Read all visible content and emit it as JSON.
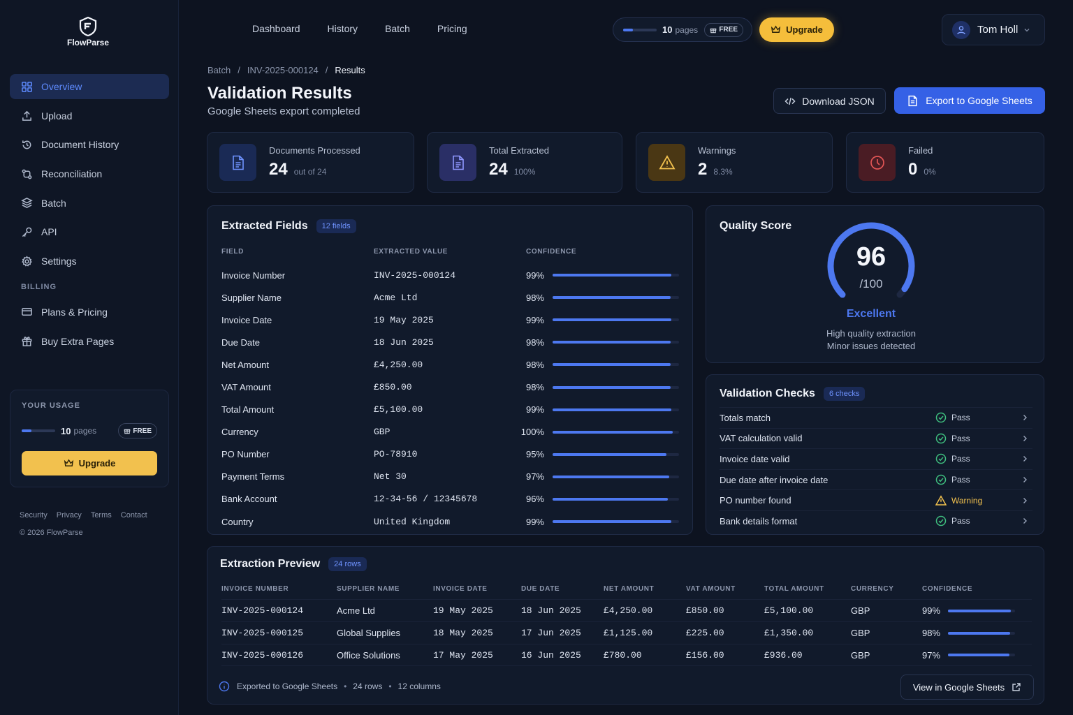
{
  "brand": {
    "name": "FlowParse"
  },
  "sidebar": {
    "items": [
      {
        "label": "Overview",
        "icon": "grid-icon"
      },
      {
        "label": "Upload",
        "icon": "upload-icon"
      },
      {
        "label": "Document History",
        "icon": "history-icon"
      },
      {
        "label": "Reconciliation",
        "icon": "reconcile-icon"
      },
      {
        "label": "Batch",
        "icon": "layers-icon"
      },
      {
        "label": "API",
        "icon": "key-icon"
      },
      {
        "label": "Settings",
        "icon": "gear-icon"
      }
    ],
    "billing_label": "BILLING",
    "billing_items": [
      {
        "label": "Plans & Pricing",
        "icon": "card-icon"
      },
      {
        "label": "Buy Extra Pages",
        "icon": "gift-icon"
      }
    ],
    "usage": {
      "title": "YOUR USAGE",
      "pages": "10",
      "unit": "pages",
      "plan": "FREE",
      "progress": 0.3,
      "upgrade": "Upgrade"
    },
    "footer_links": [
      "Security",
      "Privacy",
      "Terms",
      "Contact"
    ],
    "copyright": "© 2026 FlowParse"
  },
  "topnav": {
    "links": [
      "Dashboard",
      "History",
      "Batch",
      "Pricing"
    ],
    "usage": {
      "pages": "10",
      "unit": "pages",
      "plan": "FREE",
      "progress": 0.3
    },
    "upgrade": "Upgrade",
    "user": "Tom Holl"
  },
  "header": {
    "breadcrumb": [
      "Batch",
      "INV-2025-000124",
      "Results"
    ],
    "breadcrumb_sep": "/",
    "title": "Validation Results",
    "subtitle": "Google Sheets export completed",
    "download_json": "Download JSON",
    "export_sheets": "Export to Google Sheets"
  },
  "stats": [
    {
      "label": "Documents Processed",
      "value": "24",
      "sub": "out of 24",
      "color": "#4d78f0"
    },
    {
      "label": "Total Extracted",
      "value": "24",
      "sub": "100%",
      "color": "#7b86ff"
    },
    {
      "label": "Warnings",
      "value": "2",
      "sub": "8.3%",
      "color": "#f2c14e"
    },
    {
      "label": "Failed",
      "value": "0",
      "sub": "0%",
      "color": "#e25555"
    }
  ],
  "extracted_fields": {
    "title": "Extracted Fields",
    "badge": "12 fields",
    "columns": [
      "FIELD",
      "EXTRACTED VALUE",
      "CONFIDENCE"
    ],
    "rows": [
      {
        "field": "Invoice Number",
        "value": "INV-2025-000124",
        "confidence": "99%",
        "pct": 99
      },
      {
        "field": "Supplier Name",
        "value": "Acme Ltd",
        "confidence": "98%",
        "pct": 98
      },
      {
        "field": "Invoice Date",
        "value": "19 May 2025",
        "confidence": "99%",
        "pct": 99
      },
      {
        "field": "Due Date",
        "value": "18 Jun 2025",
        "confidence": "98%",
        "pct": 98
      },
      {
        "field": "Net Amount",
        "value": "£4,250.00",
        "confidence": "98%",
        "pct": 98
      },
      {
        "field": "VAT Amount",
        "value": "£850.00",
        "confidence": "98%",
        "pct": 98
      },
      {
        "field": "Total Amount",
        "value": "£5,100.00",
        "confidence": "99%",
        "pct": 99
      },
      {
        "field": "Currency",
        "value": "GBP",
        "confidence": "100%",
        "pct": 100
      },
      {
        "field": "PO Number",
        "value": "PO-78910",
        "confidence": "95%",
        "pct": 95
      },
      {
        "field": "Payment Terms",
        "value": "Net 30",
        "confidence": "97%",
        "pct": 97
      },
      {
        "field": "Bank Account",
        "value": "12-34-56 / 12345678",
        "confidence": "96%",
        "pct": 96
      },
      {
        "field": "Country",
        "value": "United Kingdom",
        "confidence": "99%",
        "pct": 99
      }
    ]
  },
  "quality": {
    "title": "Quality Score",
    "score": "96",
    "of": "/100",
    "score_fraction": 0.96,
    "rating": "Excellent",
    "note1": "High quality extraction",
    "note2": "Minor issues detected"
  },
  "checks": {
    "title": "Validation Checks",
    "badge": "6 checks",
    "rows": [
      {
        "label": "Totals match",
        "status": "Pass",
        "type": "pass"
      },
      {
        "label": "VAT calculation valid",
        "status": "Pass",
        "type": "pass"
      },
      {
        "label": "Invoice date valid",
        "status": "Pass",
        "type": "pass"
      },
      {
        "label": "Due date after invoice date",
        "status": "Pass",
        "type": "pass"
      },
      {
        "label": "PO number found",
        "status": "Warning",
        "type": "warning"
      },
      {
        "label": "Bank details format",
        "status": "Pass",
        "type": "pass"
      }
    ]
  },
  "preview": {
    "title": "Extraction Preview",
    "badge": "24 rows",
    "columns": [
      "INVOICE NUMBER",
      "SUPPLIER NAME",
      "INVOICE DATE",
      "DUE DATE",
      "NET AMOUNT",
      "VAT AMOUNT",
      "TOTAL AMOUNT",
      "CURRENCY",
      "CONFIDENCE"
    ],
    "rows": [
      {
        "invoice": "INV-2025-000124",
        "supplier": "Acme Ltd",
        "inv_date": "19 May 2025",
        "due_date": "18 Jun 2025",
        "net": "£4,250.00",
        "vat": "£850.00",
        "total": "£5,100.00",
        "currency": "GBP",
        "confidence": "99%",
        "pct": 99
      },
      {
        "invoice": "INV-2025-000125",
        "supplier": "Global Supplies",
        "inv_date": "18 May 2025",
        "due_date": "17 Jun 2025",
        "net": "£1,125.00",
        "vat": "£225.00",
        "total": "£1,350.00",
        "currency": "GBP",
        "confidence": "98%",
        "pct": 98
      },
      {
        "invoice": "INV-2025-000126",
        "supplier": "Office Solutions",
        "inv_date": "17 May 2025",
        "due_date": "16 Jun 2025",
        "net": "£780.00",
        "vat": "£156.00",
        "total": "£936.00",
        "currency": "GBP",
        "confidence": "97%",
        "pct": 97
      }
    ],
    "footer": {
      "exported": "Exported to Google Sheets",
      "rows": "24 rows",
      "columns": "12 columns",
      "dot": "•"
    },
    "view_button": "View in Google Sheets"
  }
}
